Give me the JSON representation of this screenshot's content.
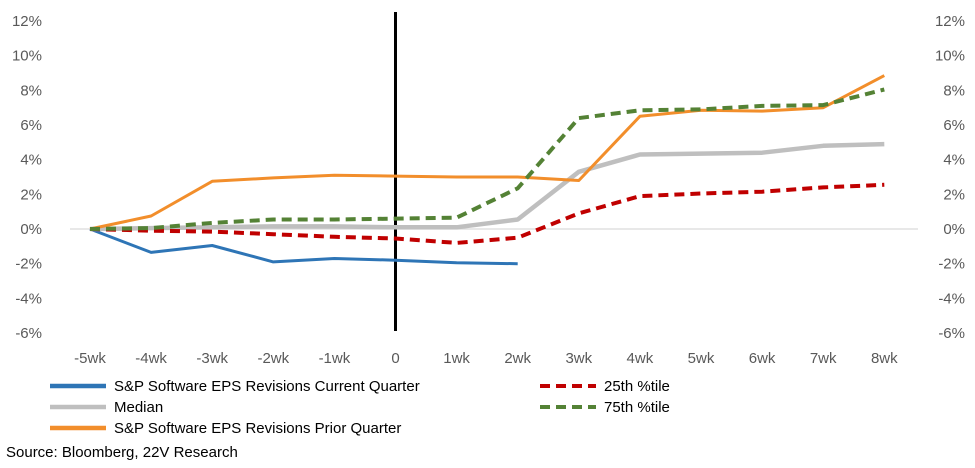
{
  "chart_data": {
    "type": "line",
    "categories": [
      "-5wk",
      "-4wk",
      "-3wk",
      "-2wk",
      "-1wk",
      "0",
      "1wk",
      "2wk",
      "3wk",
      "4wk",
      "5wk",
      "6wk",
      "7wk",
      "8wk"
    ],
    "ylim": [
      -6,
      12
    ],
    "yticks": [
      -6,
      -4,
      -2,
      0,
      2,
      4,
      6,
      8,
      10,
      12
    ],
    "ytick_labels": [
      "-6%",
      "-4%",
      "-2%",
      "0%",
      "2%",
      "4%",
      "6%",
      "8%",
      "10%",
      "12%"
    ],
    "grid": false,
    "zero_line": true,
    "vertical_marker_at": "0",
    "legend_position": "bottom",
    "series": [
      {
        "name": "S&P Software EPS Revisions Current Quarter",
        "color": "#2e75b6",
        "style": "solid",
        "values": [
          0.0,
          -1.35,
          -0.95,
          -1.9,
          -1.7,
          -1.8,
          -1.95,
          -2.0,
          null,
          null,
          null,
          null,
          null,
          null
        ]
      },
      {
        "name": "Median",
        "color": "#bfbfbf",
        "style": "solid",
        "values": [
          0.0,
          0.05,
          0.1,
          0.15,
          0.15,
          0.1,
          0.1,
          0.55,
          3.3,
          4.3,
          4.35,
          4.4,
          4.8,
          4.9
        ]
      },
      {
        "name": "S&P Software EPS Revisions Prior Quarter",
        "color": "#f28e2b",
        "style": "solid",
        "values": [
          0.0,
          0.75,
          2.75,
          2.95,
          3.1,
          3.05,
          3.0,
          3.0,
          2.8,
          6.5,
          6.85,
          6.8,
          7.0,
          8.85
        ]
      },
      {
        "name": "25th %tile",
        "color": "#c00000",
        "style": "dashed",
        "values": [
          0.0,
          -0.1,
          -0.15,
          -0.3,
          -0.45,
          -0.55,
          -0.8,
          -0.5,
          0.9,
          1.9,
          2.05,
          2.15,
          2.4,
          2.55
        ]
      },
      {
        "name": "75th %tile",
        "color": "#548235",
        "style": "dashed",
        "values": [
          0.0,
          0.05,
          0.35,
          0.55,
          0.55,
          0.6,
          0.65,
          2.35,
          6.4,
          6.85,
          6.9,
          7.1,
          7.15,
          8.05
        ]
      }
    ],
    "legend_left_order": [
      0,
      1,
      2
    ],
    "legend_right_order": [
      3,
      4
    ]
  },
  "source": "Source: Bloomberg, 22V Research"
}
